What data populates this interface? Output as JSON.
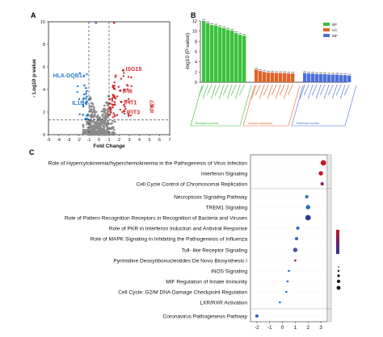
{
  "figure": {
    "panel_a_letter": "A",
    "panel_b_letter": "B",
    "panel_c_letter": "C"
  },
  "panel_a": {
    "xlabel": "Fold Change",
    "ylabel": "- Log10 p-value",
    "up_genes": [
      "ISG15",
      "IFI6",
      "IFIT1",
      "IFIT3",
      "IFI27"
    ],
    "down_genes": [
      "HLA-DQB1",
      "IL1B"
    ],
    "colors": {
      "up": "#d12b2b",
      "down": "#2f7fd0",
      "ns": "#8a8a8a"
    }
  },
  "panel_b": {
    "ylabel": "-log10 (P-value)",
    "legend": [
      {
        "label": "BP",
        "color": "#3cc13c"
      },
      {
        "label": "CC",
        "color": "#e2622a"
      },
      {
        "label": "MF",
        "color": "#4a6fd8"
      }
    ],
    "group_labels": [
      "Biological process",
      "Cellular component",
      "Molecular function"
    ]
  },
  "panel_c": {
    "pathways": [
      "Role of Hypercytokinemia/hyperchemokinemia in the Pathogenesis of Virus Infection",
      "Interferon Signaling",
      "Cell Cycle Control of Chromosomal Replication",
      "Necroptosis Signaling Pathway",
      "TREM1 Signaling",
      "Role of Pattern Recognition Receptors in Recognition of Bacteria and Viruses",
      "Role of PKR in Interferon Induction and Antiviral Response",
      "Role of MAPK Signaling in Inhibiting the Pathogenesis of Influenza",
      "Toll- like Receptor Signaling",
      "Pyrimidine Deoxyribonucleotides De Novo Biosynthesis I",
      "iNOS Signaling",
      "MIF Regulation of Innate Immunity",
      "Cell Cycle: G2/M DNA Damage Checkpoint Regulation",
      "LXR/RXR Activation",
      "Coronavirus Pathogenesis Pathway"
    ]
  },
  "chart_data": [
    {
      "type": "scatter",
      "title": "",
      "xlabel": "Fold Change",
      "ylabel": "- Log10 p-value",
      "xlim": [
        -5,
        7
      ],
      "ylim": [
        0,
        10
      ],
      "x_ticks": [
        -5,
        -4,
        -3,
        -2,
        -1,
        0,
        1,
        2,
        3,
        4,
        5,
        6,
        7
      ],
      "y_ticks": [
        0,
        2,
        4,
        6,
        8,
        10
      ],
      "thresholds": {
        "x": [
          -1,
          1
        ],
        "y": 1.3
      },
      "labeled_points": [
        {
          "label": "HLA-DQB1",
          "x": -1.5,
          "y": 5.2
        },
        {
          "label": "IL1B",
          "x": -1.3,
          "y": 2.8
        },
        {
          "label": "ISG15",
          "x": 2.4,
          "y": 5.7
        },
        {
          "label": "IFI6",
          "x": 2.1,
          "y": 3.9
        },
        {
          "label": "IFIT1",
          "x": 2.2,
          "y": 2.9
        },
        {
          "label": "IFIT3",
          "x": 2.5,
          "y": 2.1
        },
        {
          "label": "IFI27",
          "x": 5.2,
          "y": 2.5
        }
      ]
    },
    {
      "type": "bar",
      "title": "",
      "ylabel": "-log10 (P-value)",
      "ylim": [
        0,
        12
      ],
      "y_ticks": [
        0,
        2,
        4,
        6,
        8,
        10,
        12
      ],
      "series": [
        {
          "name": "BP",
          "values": [
            12.0,
            11.6,
            11.2,
            11.1,
            10.8,
            10.6,
            10.3,
            10.1,
            9.6,
            9.3,
            9.1
          ]
        },
        {
          "name": "CC",
          "values": [
            2.5,
            2.2,
            2.0,
            1.9,
            1.9,
            1.8,
            1.8,
            1.8,
            1.7,
            1.7
          ]
        },
        {
          "name": "MF",
          "values": [
            1.8,
            1.7,
            1.7,
            1.6,
            1.6,
            1.6,
            1.5,
            1.5,
            1.5,
            1.4,
            1.4,
            1.3
          ]
        }
      ]
    },
    {
      "type": "scatter",
      "title": "",
      "xlabel": "",
      "xlim": [
        -2.5,
        3.5
      ],
      "x_ticks": [
        -2,
        -1,
        0,
        1,
        2,
        3
      ],
      "categories": [
        "Role of Hypercytokinemia/hyperchemokinemia in the Pathogenesis of Virus Infection",
        "Interferon Signaling",
        "Cell Cycle Control of Chromosomal Replication",
        "Necroptosis Signaling Pathway",
        "TREM1 Signaling",
        "Role of Pattern Recognition Receptors in Recognition of Bacteria and Viruses",
        "Role of PKR in Interferon Induction and Antiviral Response",
        "Role of MAPK Signaling in Inhibiting the Pathogenesis of Influenza",
        "Toll- like Receptor Signaling",
        "Pyrimidine Deoxyribonucleotides De Novo Biosynthesis I",
        "iNOS Signaling",
        "MIF Regulation of Innate Immunity",
        "Cell Cycle: G2/M DNA Damage Checkpoint Regulation",
        "LXR/RXR Activation",
        "Coronavirus Pathogenesis Pathway"
      ],
      "values": [
        3.2,
        3.0,
        3.1,
        1.9,
        2.0,
        2.0,
        1.2,
        1.1,
        1.0,
        1.0,
        0.5,
        0.4,
        0.3,
        -0.2,
        -2.0
      ],
      "sizes": [
        4,
        3,
        2,
        2,
        3,
        4,
        2,
        2,
        3,
        1,
        1,
        1,
        1,
        1,
        2
      ],
      "colors": [
        "#c0182a",
        "#c0182a",
        "#7a1a6a",
        "#2a6ab8",
        "#2a6ab8",
        "#2a3a9a",
        "#2a6ab8",
        "#2a6ab8",
        "#4a4ab0",
        "#7a1a6a",
        "#2a6ab8",
        "#2a6ab8",
        "#2a6ab8",
        "#2a6ab8",
        "#2a6ab8"
      ]
    }
  ]
}
